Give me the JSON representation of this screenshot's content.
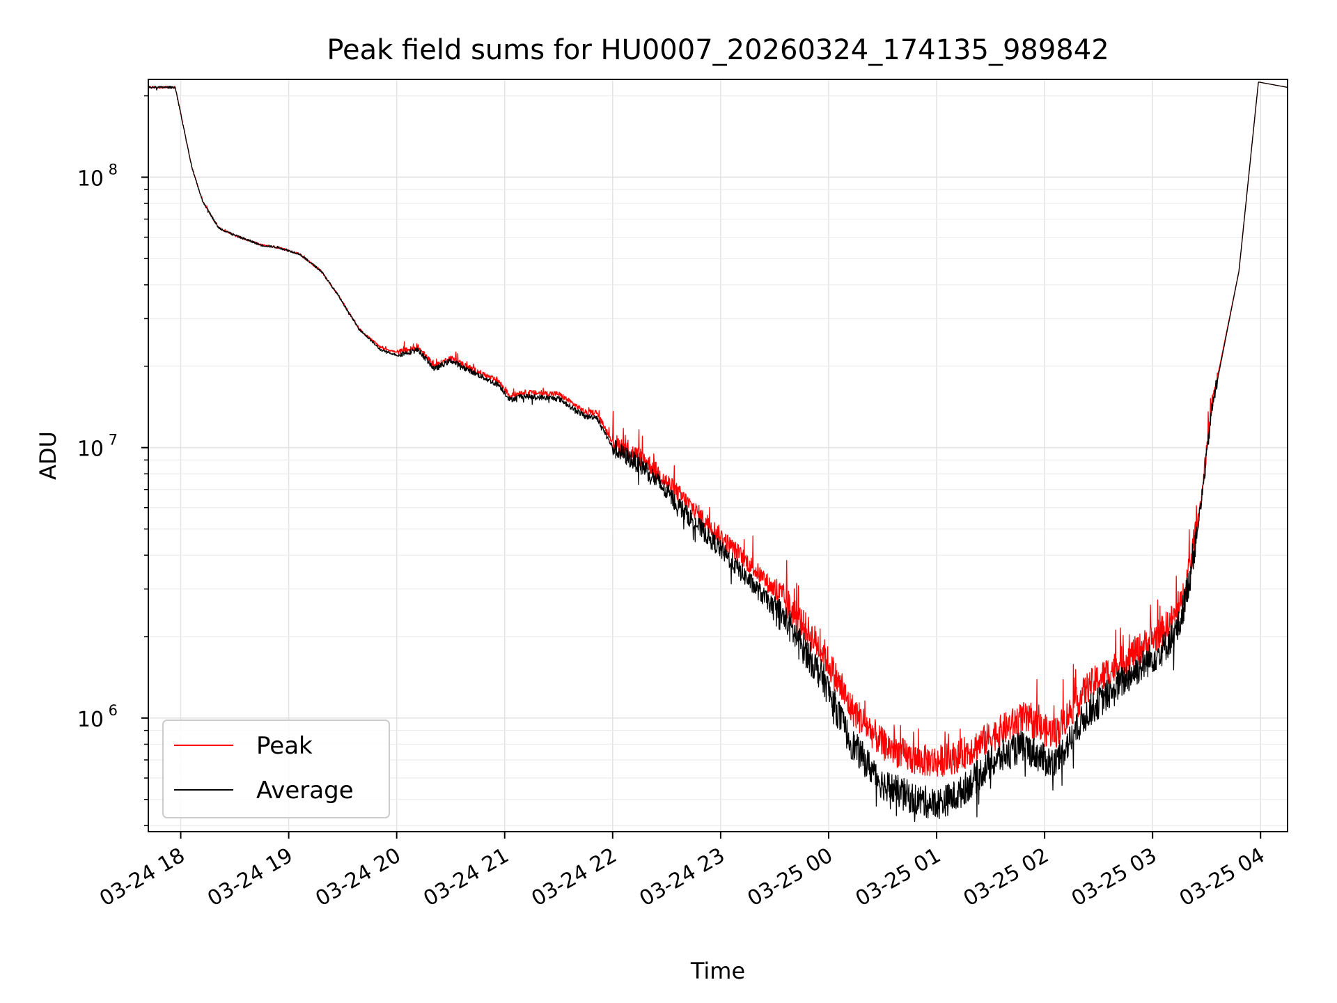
{
  "chart_data": {
    "type": "line",
    "title": "Peak field sums for HU0007_20260324_174135_989842",
    "xlabel": "Time",
    "ylabel": "ADU",
    "yscale": "log",
    "ylim": [
      380000,
      230000000
    ],
    "xlim_hours_from_0324_1800": [
      -0.3,
      10.25
    ],
    "grid": true,
    "legend_position": "lower-left",
    "x_ticks": [
      {
        "label": "03-24 18",
        "hour": 0
      },
      {
        "label": "03-24 19",
        "hour": 1
      },
      {
        "label": "03-24 20",
        "hour": 2
      },
      {
        "label": "03-24 21",
        "hour": 3
      },
      {
        "label": "03-24 22",
        "hour": 4
      },
      {
        "label": "03-24 23",
        "hour": 5
      },
      {
        "label": "03-25 00",
        "hour": 6
      },
      {
        "label": "03-25 01",
        "hour": 7
      },
      {
        "label": "03-25 02",
        "hour": 8
      },
      {
        "label": "03-25 03",
        "hour": 9
      },
      {
        "label": "03-25 04",
        "hour": 10
      }
    ],
    "y_ticks": [
      {
        "base": "10",
        "exp": "6",
        "value": 1000000
      },
      {
        "base": "10",
        "exp": "7",
        "value": 10000000
      },
      {
        "base": "10",
        "exp": "8",
        "value": 100000000
      }
    ],
    "series": [
      {
        "name": "Peak",
        "color": "#ff0000",
        "noise": "peak",
        "points": [
          [
            -0.3,
            215000000
          ],
          [
            -0.05,
            215000000
          ],
          [
            0.1,
            110000000
          ],
          [
            0.2,
            82000000
          ],
          [
            0.35,
            65000000
          ],
          [
            0.5,
            61000000
          ],
          [
            0.75,
            56000000
          ],
          [
            0.9,
            55000000
          ],
          [
            1.1,
            52000000
          ],
          [
            1.3,
            45000000
          ],
          [
            1.45,
            37000000
          ],
          [
            1.65,
            27500000
          ],
          [
            1.85,
            23500000
          ],
          [
            2.0,
            22500000
          ],
          [
            2.2,
            23500000
          ],
          [
            2.35,
            20000000
          ],
          [
            2.5,
            21500000
          ],
          [
            2.65,
            20000000
          ],
          [
            2.95,
            17500000
          ],
          [
            3.05,
            15500000
          ],
          [
            3.15,
            16000000
          ],
          [
            3.5,
            15800000
          ],
          [
            3.75,
            13500000
          ],
          [
            3.85,
            13500000
          ],
          [
            4.0,
            10500000
          ],
          [
            4.3,
            9000000
          ],
          [
            4.7,
            6200000
          ],
          [
            5.0,
            4700000
          ],
          [
            5.3,
            3600000
          ],
          [
            5.6,
            2700000
          ],
          [
            5.95,
            1750000
          ],
          [
            6.2,
            1100000
          ],
          [
            6.5,
            800000
          ],
          [
            6.8,
            700000
          ],
          [
            7.0,
            690000
          ],
          [
            7.2,
            720000
          ],
          [
            7.5,
            850000
          ],
          [
            7.8,
            1000000
          ],
          [
            8.0,
            900000
          ],
          [
            8.1,
            880000
          ],
          [
            8.4,
            1300000
          ],
          [
            8.8,
            1700000
          ],
          [
            9.1,
            2100000
          ],
          [
            9.25,
            2500000
          ],
          [
            9.35,
            3700000
          ],
          [
            9.45,
            6500000
          ],
          [
            9.55,
            14500000
          ],
          [
            9.8,
            45000000
          ],
          [
            9.98,
            225000000
          ],
          [
            10.25,
            215000000
          ]
        ]
      },
      {
        "name": "Average",
        "color": "#000000",
        "noise": "avg",
        "points": [
          [
            -0.3,
            215000000
          ],
          [
            -0.05,
            215000000
          ],
          [
            0.1,
            110000000
          ],
          [
            0.2,
            82000000
          ],
          [
            0.35,
            65000000
          ],
          [
            0.5,
            61000000
          ],
          [
            0.75,
            56000000
          ],
          [
            0.9,
            55000000
          ],
          [
            1.1,
            52000000
          ],
          [
            1.3,
            45000000
          ],
          [
            1.45,
            37000000
          ],
          [
            1.65,
            27500000
          ],
          [
            1.85,
            23000000
          ],
          [
            2.0,
            22000000
          ],
          [
            2.2,
            23000000
          ],
          [
            2.35,
            19500000
          ],
          [
            2.5,
            21000000
          ],
          [
            2.65,
            19500000
          ],
          [
            2.95,
            17000000
          ],
          [
            3.05,
            15000000
          ],
          [
            3.15,
            15500000
          ],
          [
            3.5,
            15200000
          ],
          [
            3.75,
            13000000
          ],
          [
            3.85,
            13000000
          ],
          [
            4.0,
            10000000
          ],
          [
            4.3,
            8400000
          ],
          [
            4.7,
            5600000
          ],
          [
            5.0,
            4200000
          ],
          [
            5.3,
            3100000
          ],
          [
            5.6,
            2300000
          ],
          [
            5.95,
            1400000
          ],
          [
            6.2,
            820000
          ],
          [
            6.5,
            570000
          ],
          [
            6.8,
            500000
          ],
          [
            7.0,
            480000
          ],
          [
            7.2,
            520000
          ],
          [
            7.5,
            680000
          ],
          [
            7.8,
            790000
          ],
          [
            8.0,
            700000
          ],
          [
            8.1,
            680000
          ],
          [
            8.4,
            1050000
          ],
          [
            8.8,
            1450000
          ],
          [
            9.1,
            1800000
          ],
          [
            9.25,
            2200000
          ],
          [
            9.35,
            3400000
          ],
          [
            9.45,
            6200000
          ],
          [
            9.55,
            14000000
          ],
          [
            9.8,
            45000000
          ],
          [
            9.98,
            225000000
          ],
          [
            10.25,
            215000000
          ]
        ]
      }
    ]
  }
}
